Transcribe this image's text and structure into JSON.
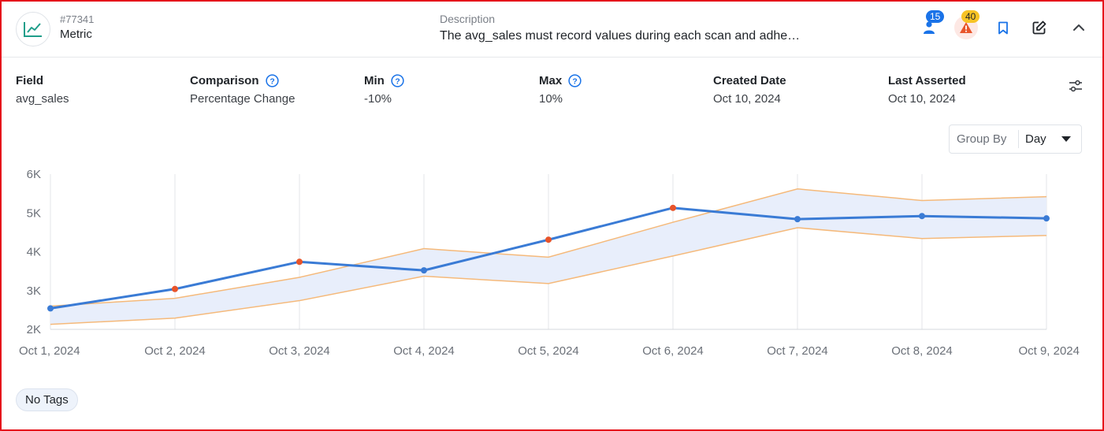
{
  "header": {
    "check_id": "#77341",
    "check_type": "Metric",
    "type_icon": "line-chart-icon",
    "description_label": "Description",
    "description": "The avg_sales must record values during each scan and adhe…",
    "actions": {
      "users_count": "15",
      "anomalies_count": "40"
    }
  },
  "info": {
    "field": {
      "label": "Field",
      "value": "avg_sales"
    },
    "comparison": {
      "label": "Comparison",
      "value": "Percentage Change"
    },
    "min": {
      "label": "Min",
      "value": "-10%"
    },
    "max": {
      "label": "Max",
      "value": "10%"
    },
    "created": {
      "label": "Created Date",
      "value": "Oct 10, 2024"
    },
    "asserted": {
      "label": "Last Asserted",
      "value": "Oct 10, 2024"
    }
  },
  "group_by": {
    "label": "Group By",
    "value": "Day"
  },
  "tags": {
    "empty_label": "No Tags"
  },
  "colors": {
    "line": "#3a7bd5",
    "band_fill": "#e8eefb",
    "band_edge": "#f5b97a",
    "anomaly_point": "#e8542a",
    "accent": "#1a73e8",
    "alert": "#e8542a"
  },
  "chart_data": {
    "type": "line",
    "x": [
      "Oct 1, 2024",
      "Oct 2, 2024",
      "Oct 3, 2024",
      "Oct 4, 2024",
      "Oct 5, 2024",
      "Oct 6, 2024",
      "Oct 7, 2024",
      "Oct 8, 2024",
      "Oct 9, 2024"
    ],
    "ylim": [
      2000,
      6000
    ],
    "yticks": [
      2000,
      3000,
      4000,
      5000,
      6000
    ],
    "ytick_labels": [
      "2K",
      "3K",
      "4K",
      "5K",
      "6K"
    ],
    "grid": "vertical",
    "series": [
      {
        "values": [
          2540,
          3040,
          3740,
          3520,
          4310,
          5130,
          4840,
          4920,
          4860
        ],
        "anomaly": [
          false,
          true,
          true,
          false,
          true,
          true,
          false,
          false,
          false
        ]
      }
    ],
    "band": {
      "upper": [
        2600,
        2800,
        3340,
        4080,
        3860,
        4760,
        5620,
        5320,
        5420
      ],
      "lower": [
        2130,
        2290,
        2740,
        3370,
        3180,
        3890,
        4620,
        4340,
        4420
      ]
    }
  }
}
